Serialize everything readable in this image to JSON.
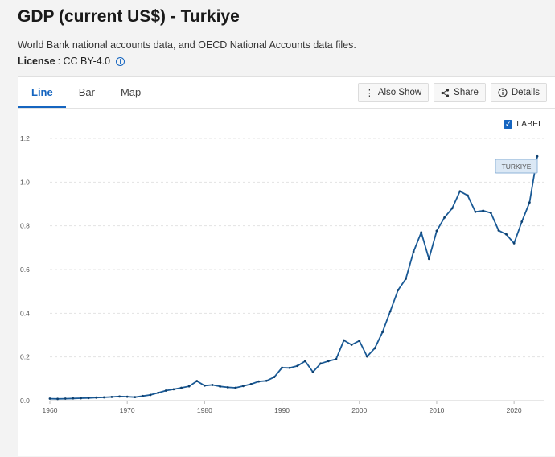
{
  "page": {
    "title": "GDP (current US$) - Turkiye",
    "source": "World Bank national accounts data, and OECD National Accounts data files.",
    "license_label": "License",
    "license_value": ": CC BY-4.0"
  },
  "tabs": [
    {
      "label": "Line",
      "active": true
    },
    {
      "label": "Bar",
      "active": false
    },
    {
      "label": "Map",
      "active": false
    }
  ],
  "tools": [
    {
      "label": "Also Show",
      "icon": "more-vertical-icon"
    },
    {
      "label": "Share",
      "icon": "share-icon"
    },
    {
      "label": "Details",
      "icon": "info-icon"
    }
  ],
  "label_toggle": {
    "label": "LABEL",
    "checked": true
  },
  "colors": {
    "accent": "#1565c0",
    "line": "#1a5a96"
  },
  "chart_data": {
    "type": "line",
    "title": "",
    "xlabel": "",
    "ylabel": "",
    "xlim": [
      1960,
      2023
    ],
    "ylim": [
      0,
      1.2
    ],
    "x_ticks": [
      "1960",
      "1970",
      "1980",
      "1990",
      "2000",
      "2010",
      "2020"
    ],
    "y_ticks": [
      "0.0",
      "0.2",
      "0.4",
      "0.6",
      "0.8",
      "1.0",
      "1.2"
    ],
    "grid": true,
    "series": [
      {
        "name": "TURKIYE",
        "x": [
          1960,
          1961,
          1962,
          1963,
          1964,
          1965,
          1966,
          1967,
          1968,
          1969,
          1970,
          1971,
          1972,
          1973,
          1974,
          1975,
          1976,
          1977,
          1978,
          1979,
          1980,
          1981,
          1982,
          1983,
          1984,
          1985,
          1986,
          1987,
          1988,
          1989,
          1990,
          1991,
          1992,
          1993,
          1994,
          1995,
          1996,
          1997,
          1998,
          1999,
          2000,
          2001,
          2002,
          2003,
          2004,
          2005,
          2006,
          2007,
          2008,
          2009,
          2010,
          2011,
          2012,
          2013,
          2014,
          2015,
          2016,
          2017,
          2018,
          2019,
          2020,
          2021,
          2022,
          2023
        ],
        "values": [
          0.009,
          0.008,
          0.009,
          0.01,
          0.011,
          0.012,
          0.014,
          0.015,
          0.017,
          0.019,
          0.018,
          0.016,
          0.021,
          0.026,
          0.036,
          0.046,
          0.052,
          0.059,
          0.066,
          0.09,
          0.069,
          0.072,
          0.065,
          0.061,
          0.059,
          0.067,
          0.076,
          0.088,
          0.091,
          0.108,
          0.151,
          0.15,
          0.159,
          0.181,
          0.131,
          0.17,
          0.181,
          0.19,
          0.276,
          0.256,
          0.274,
          0.202,
          0.24,
          0.314,
          0.409,
          0.506,
          0.557,
          0.681,
          0.77,
          0.649,
          0.777,
          0.838,
          0.88,
          0.958,
          0.939,
          0.864,
          0.869,
          0.859,
          0.779,
          0.761,
          0.72,
          0.819,
          0.907,
          1.118
        ]
      }
    ],
    "annotations": [
      "TURKIYE"
    ]
  }
}
